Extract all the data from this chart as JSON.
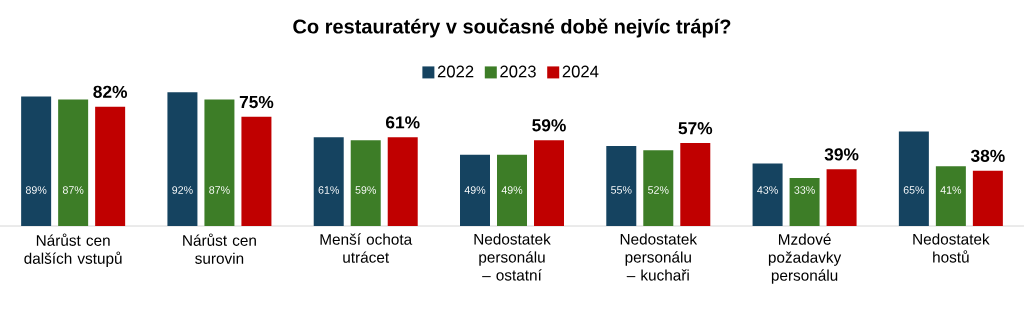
{
  "chart_data": {
    "type": "bar",
    "title": "Co restauratéry v současné době nejvíc trápí?",
    "categories": [
      "Nárůst cen dalších vstupů",
      "Nárůst cen surovin",
      "Menší ochota utrácet",
      "Nedostatek personálu – ostatní",
      "Nedostatek personálu – kuchaři",
      "Mzdové požadavky personálu",
      "Nedostatek hostů"
    ],
    "series": [
      {
        "name": "2022",
        "color": "#154360",
        "values": [
          89,
          92,
          61,
          49,
          55,
          43,
          65
        ],
        "value_labels": [
          "89%",
          "92%",
          "61%",
          "49%",
          "55%",
          "43%",
          "65%"
        ]
      },
      {
        "name": "2023",
        "color": "#3d7d27",
        "values": [
          87,
          87,
          59,
          49,
          52,
          33,
          41
        ],
        "value_labels": [
          "87%",
          "87%",
          "59%",
          "49%",
          "52%",
          "33%",
          "41%"
        ]
      },
      {
        "name": "2024",
        "color": "#c00000",
        "values": [
          82,
          75,
          61,
          59,
          57,
          39,
          38
        ],
        "value_labels": [
          "82%",
          "75%",
          "61%",
          "59%",
          "57%",
          "39%",
          "38%"
        ]
      }
    ],
    "legend": "top"
  }
}
